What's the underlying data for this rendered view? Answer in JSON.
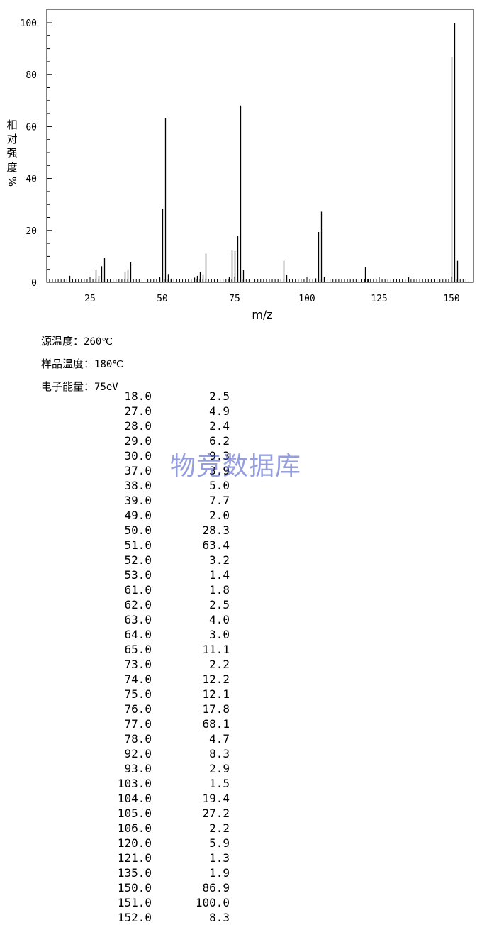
{
  "chart_data": {
    "type": "bar",
    "xlabel": "m/z",
    "ylabel": "相对强度",
    "ylabel_unit": "%",
    "xlim": [
      10,
      155
    ],
    "ylim": [
      0,
      100
    ],
    "xticks": [
      25,
      50,
      75,
      100,
      125,
      150
    ],
    "yticks": [
      0,
      20,
      40,
      60,
      80,
      100
    ],
    "grid": false,
    "series": [
      {
        "x": [
          18.0,
          27.0,
          28.0,
          29.0,
          30.0,
          37.0,
          38.0,
          39.0,
          49.0,
          50.0,
          51.0,
          52.0,
          53.0,
          61.0,
          62.0,
          63.0,
          64.0,
          65.0,
          73.0,
          74.0,
          75.0,
          76.0,
          77.0,
          78.0,
          92.0,
          93.0,
          103.0,
          104.0,
          105.0,
          106.0,
          120.0,
          121.0,
          135.0,
          150.0,
          151.0,
          152.0
        ],
        "values": [
          2.5,
          4.9,
          2.4,
          6.2,
          9.3,
          3.9,
          5.0,
          7.7,
          2.0,
          28.3,
          63.4,
          3.2,
          1.4,
          1.8,
          2.5,
          4.0,
          3.0,
          11.1,
          2.2,
          12.2,
          12.1,
          17.8,
          68.1,
          4.7,
          8.3,
          2.9,
          1.5,
          19.4,
          27.2,
          2.2,
          5.9,
          1.3,
          1.9,
          86.9,
          100.0,
          8.3
        ]
      }
    ]
  },
  "conditions": [
    {
      "label": "源温度：",
      "value": "260℃"
    },
    {
      "label": "样品温度：",
      "value": "180℃"
    },
    {
      "label": "电子能量：",
      "value": "75eV"
    }
  ],
  "peaks": [
    [
      "18.0",
      "2.5"
    ],
    [
      "27.0",
      "4.9"
    ],
    [
      "28.0",
      "2.4"
    ],
    [
      "29.0",
      "6.2"
    ],
    [
      "30.0",
      "9.3"
    ],
    [
      "37.0",
      "3.9"
    ],
    [
      "38.0",
      "5.0"
    ],
    [
      "39.0",
      "7.7"
    ],
    [
      "49.0",
      "2.0"
    ],
    [
      "50.0",
      "28.3"
    ],
    [
      "51.0",
      "63.4"
    ],
    [
      "52.0",
      "3.2"
    ],
    [
      "53.0",
      "1.4"
    ],
    [
      "61.0",
      "1.8"
    ],
    [
      "62.0",
      "2.5"
    ],
    [
      "63.0",
      "4.0"
    ],
    [
      "64.0",
      "3.0"
    ],
    [
      "65.0",
      "11.1"
    ],
    [
      "73.0",
      "2.2"
    ],
    [
      "74.0",
      "12.2"
    ],
    [
      "75.0",
      "12.1"
    ],
    [
      "76.0",
      "17.8"
    ],
    [
      "77.0",
      "68.1"
    ],
    [
      "78.0",
      "4.7"
    ],
    [
      "92.0",
      "8.3"
    ],
    [
      "93.0",
      "2.9"
    ],
    [
      "103.0",
      "1.5"
    ],
    [
      "104.0",
      "19.4"
    ],
    [
      "105.0",
      "27.2"
    ],
    [
      "106.0",
      "2.2"
    ],
    [
      "120.0",
      "5.9"
    ],
    [
      "121.0",
      "1.3"
    ],
    [
      "135.0",
      "1.9"
    ],
    [
      "150.0",
      "86.9"
    ],
    [
      "151.0",
      "100.0"
    ],
    [
      "152.0",
      "8.3"
    ]
  ],
  "watermark": "物竞数据库"
}
